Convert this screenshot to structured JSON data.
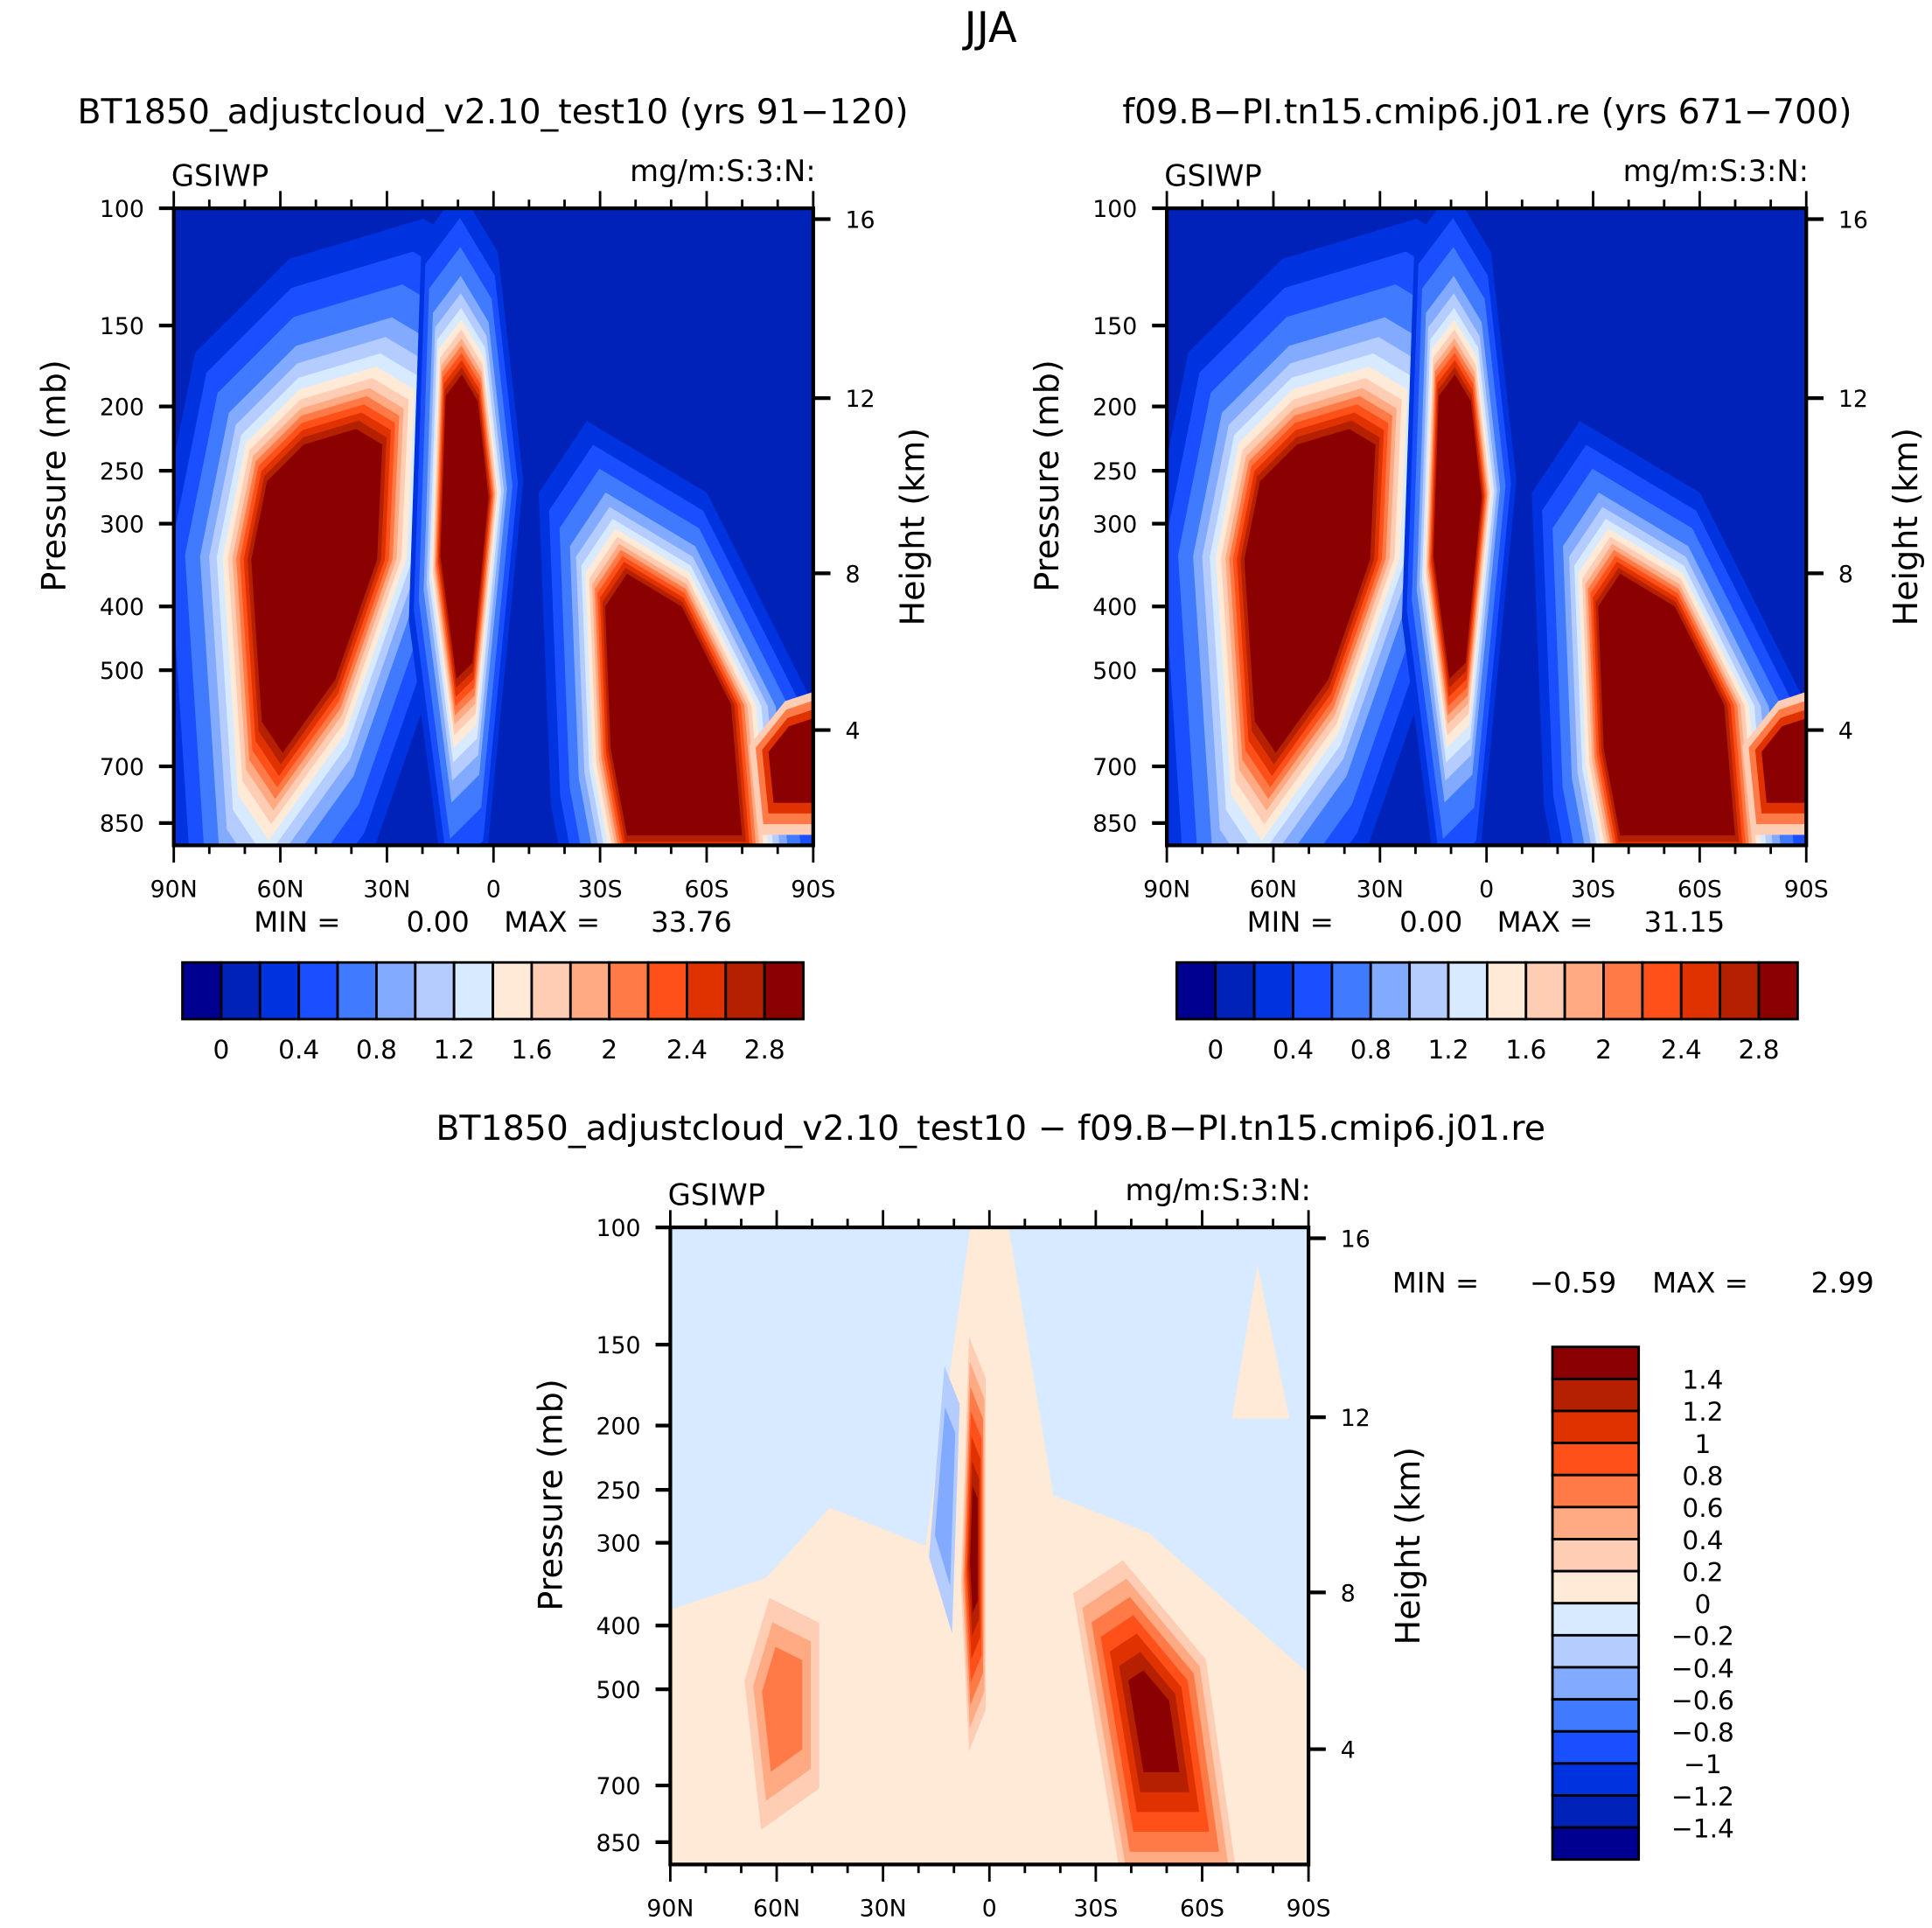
{
  "chart_data": {
    "type": "heatmap",
    "title": "JJA",
    "palette": [
      "#000090",
      "#0022b8",
      "#0033e0",
      "#1a4fff",
      "#3f7aff",
      "#82aaff",
      "#b4ccff",
      "#d8eaff",
      "#ffead8",
      "#ffccb4",
      "#ffaa82",
      "#ff7a46",
      "#ff5019",
      "#e03200",
      "#b42000",
      "#8b0000"
    ],
    "x_ticks": [
      "90N",
      "60N",
      "30N",
      "0",
      "30S",
      "60S",
      "90S"
    ],
    "y_left_ticks": [
      "100",
      "150",
      "200",
      "250",
      "300",
      "400",
      "500",
      "700",
      "850"
    ],
    "y_right_ticks": [
      "16",
      "12",
      "8",
      "4"
    ],
    "ylabel_left": "Pressure (mb)",
    "ylabel_right": "Height (km)",
    "panels": [
      {
        "title": "BT1850_adjustcloud_v2.10_test10 (yrs 91-120)",
        "left_label": "GSIWP",
        "right_label": "mg/m:S:3:N:",
        "min_label": "MIN =",
        "min": "0.00",
        "max_label": "MAX =",
        "max": "33.76",
        "colorbar_labels": [
          "0",
          "0.4",
          "0.8",
          "1.2",
          "1.6",
          "2",
          "2.4",
          "2.8"
        ],
        "levels": [
          0,
          0.2,
          0.4,
          0.6,
          0.8,
          1.0,
          1.2,
          1.4,
          1.6,
          1.8,
          2.0,
          2.2,
          2.4,
          2.6,
          2.8
        ]
      },
      {
        "title": "f09.B-PI.tn15.cmip6.j01.re (yrs 671-700)",
        "left_label": "GSIWP",
        "right_label": "mg/m:S:3:N:",
        "min_label": "MIN =",
        "min": "0.00",
        "max_label": "MAX =",
        "max": "31.15",
        "colorbar_labels": [
          "0",
          "0.4",
          "0.8",
          "1.2",
          "1.6",
          "2",
          "2.4",
          "2.8"
        ],
        "levels": [
          0,
          0.2,
          0.4,
          0.6,
          0.8,
          1.0,
          1.2,
          1.4,
          1.6,
          1.8,
          2.0,
          2.2,
          2.4,
          2.6,
          2.8
        ]
      },
      {
        "title": "BT1850_adjustcloud_v2.10_test10 - f09.B-PI.tn15.cmip6.j01.re",
        "left_label": "GSIWP",
        "right_label": "mg/m:S:3:N:",
        "min_label": "MIN =",
        "min": "-0.59",
        "max_label": "MAX =",
        "max": "2.99",
        "colorbar_labels": [
          "1.4",
          "1.2",
          "1",
          "0.8",
          "0.6",
          "0.4",
          "0.2",
          "0",
          "-0.2",
          "-0.4",
          "-0.6",
          "-0.8",
          "-1",
          "-1.2",
          "-1.4"
        ],
        "levels": [
          -1.4,
          -1.2,
          -1.0,
          -0.8,
          -0.6,
          -0.4,
          -0.2,
          0,
          0.2,
          0.4,
          0.6,
          0.8,
          1.0,
          1.2,
          1.4
        ]
      }
    ]
  }
}
